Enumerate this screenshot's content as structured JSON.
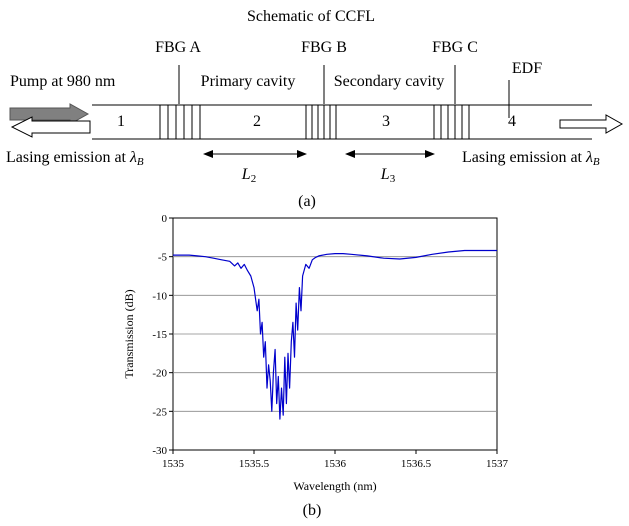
{
  "schematic": {
    "title": "Schematic of CCFL",
    "grating_labels": [
      "FBG A",
      "FBG B",
      "FBG C"
    ],
    "cavity_labels": [
      "Primary cavity",
      "Secondary cavity"
    ],
    "edf_label": "EDF",
    "pump_label": "Pump at 980 nm",
    "section_numbers": [
      "1",
      "2",
      "3",
      "4"
    ],
    "emission_label": "Lasing emission at ",
    "lambda_symbol": "λ",
    "lambda_subscript": "B",
    "length_labels": [
      {
        "symbol": "L",
        "subscript": "2"
      },
      {
        "symbol": "L",
        "subscript": "3"
      }
    ],
    "caption": "(a)"
  },
  "chart_caption": "(b)",
  "chart_data": {
    "type": "line",
    "title": "",
    "xlabel": "Wavelength (nm)",
    "ylabel": "Transmission (dB)",
    "xlim": [
      1535,
      1537
    ],
    "ylim": [
      -30,
      0
    ],
    "xticks": [
      1535,
      1535.5,
      1536,
      1536.5,
      1537
    ],
    "xtick_labels": [
      "1535",
      "1535.5",
      "1536",
      "1536.5",
      "1537"
    ],
    "yticks": [
      0,
      -5,
      -10,
      -15,
      -20,
      -25,
      -30
    ],
    "ytick_labels": [
      "0",
      "-5",
      "-10",
      "-15",
      "-20",
      "-25",
      "-30"
    ],
    "grid": true,
    "line_color": "#0000cc",
    "series": [
      {
        "x": [
          1535.0,
          1535.05,
          1535.1,
          1535.15,
          1535.2,
          1535.25,
          1535.3,
          1535.35,
          1535.38,
          1535.4,
          1535.42,
          1535.44,
          1535.46,
          1535.48,
          1535.5,
          1535.52,
          1535.53,
          1535.54,
          1535.55,
          1535.56,
          1535.57,
          1535.58,
          1535.59,
          1535.6,
          1535.61,
          1535.62,
          1535.63,
          1535.64,
          1535.65,
          1535.66,
          1535.67,
          1535.68,
          1535.69,
          1535.7,
          1535.71,
          1535.72,
          1535.73,
          1535.74,
          1535.75,
          1535.76,
          1535.77,
          1535.78,
          1535.79,
          1535.8,
          1535.82,
          1535.84,
          1535.86,
          1535.88,
          1535.9,
          1535.95,
          1536.0,
          1536.05,
          1536.1,
          1536.2,
          1536.3,
          1536.4,
          1536.5,
          1536.6,
          1536.7,
          1536.8,
          1536.9,
          1537.0
        ],
        "y": [
          -4.8,
          -4.8,
          -4.8,
          -4.9,
          -5.0,
          -5.2,
          -5.4,
          -5.6,
          -6.2,
          -5.8,
          -6.5,
          -6.0,
          -6.8,
          -7.5,
          -9.0,
          -12.0,
          -10.5,
          -15.0,
          -13.5,
          -18.0,
          -16.0,
          -22.0,
          -19.0,
          -21.0,
          -25.0,
          -20.0,
          -17.0,
          -24.0,
          -20.5,
          -26.0,
          -22.0,
          -25.5,
          -18.0,
          -24.0,
          -17.5,
          -22.0,
          -16.0,
          -13.5,
          -18.0,
          -11.0,
          -14.5,
          -9.0,
          -12.0,
          -7.5,
          -6.0,
          -6.5,
          -5.4,
          -5.1,
          -4.9,
          -4.7,
          -4.6,
          -4.6,
          -4.7,
          -4.9,
          -5.2,
          -5.3,
          -5.1,
          -4.7,
          -4.4,
          -4.2,
          -4.2,
          -4.2
        ]
      }
    ]
  }
}
